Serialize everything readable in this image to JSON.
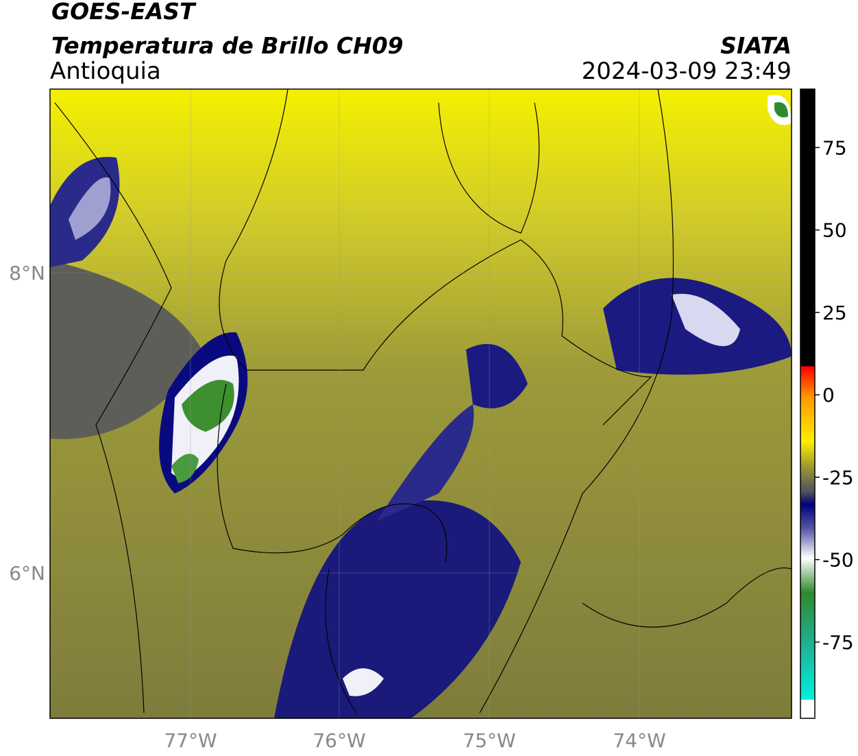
{
  "header": {
    "title": "GOES-EAST",
    "subtitle": "Temperatura de Brillo CH09",
    "region": "Antioquia",
    "source": "SIATA",
    "timestamp": "2024-03-09 23:49"
  },
  "map": {
    "lon_ticks": [
      "77°W",
      "76°W",
      "75°W",
      "74°W"
    ],
    "lat_ticks": [
      "8°N",
      "6°N"
    ]
  },
  "colorbar": {
    "ticks": [
      75,
      50,
      25,
      0,
      -25,
      -50,
      -75
    ]
  }
}
